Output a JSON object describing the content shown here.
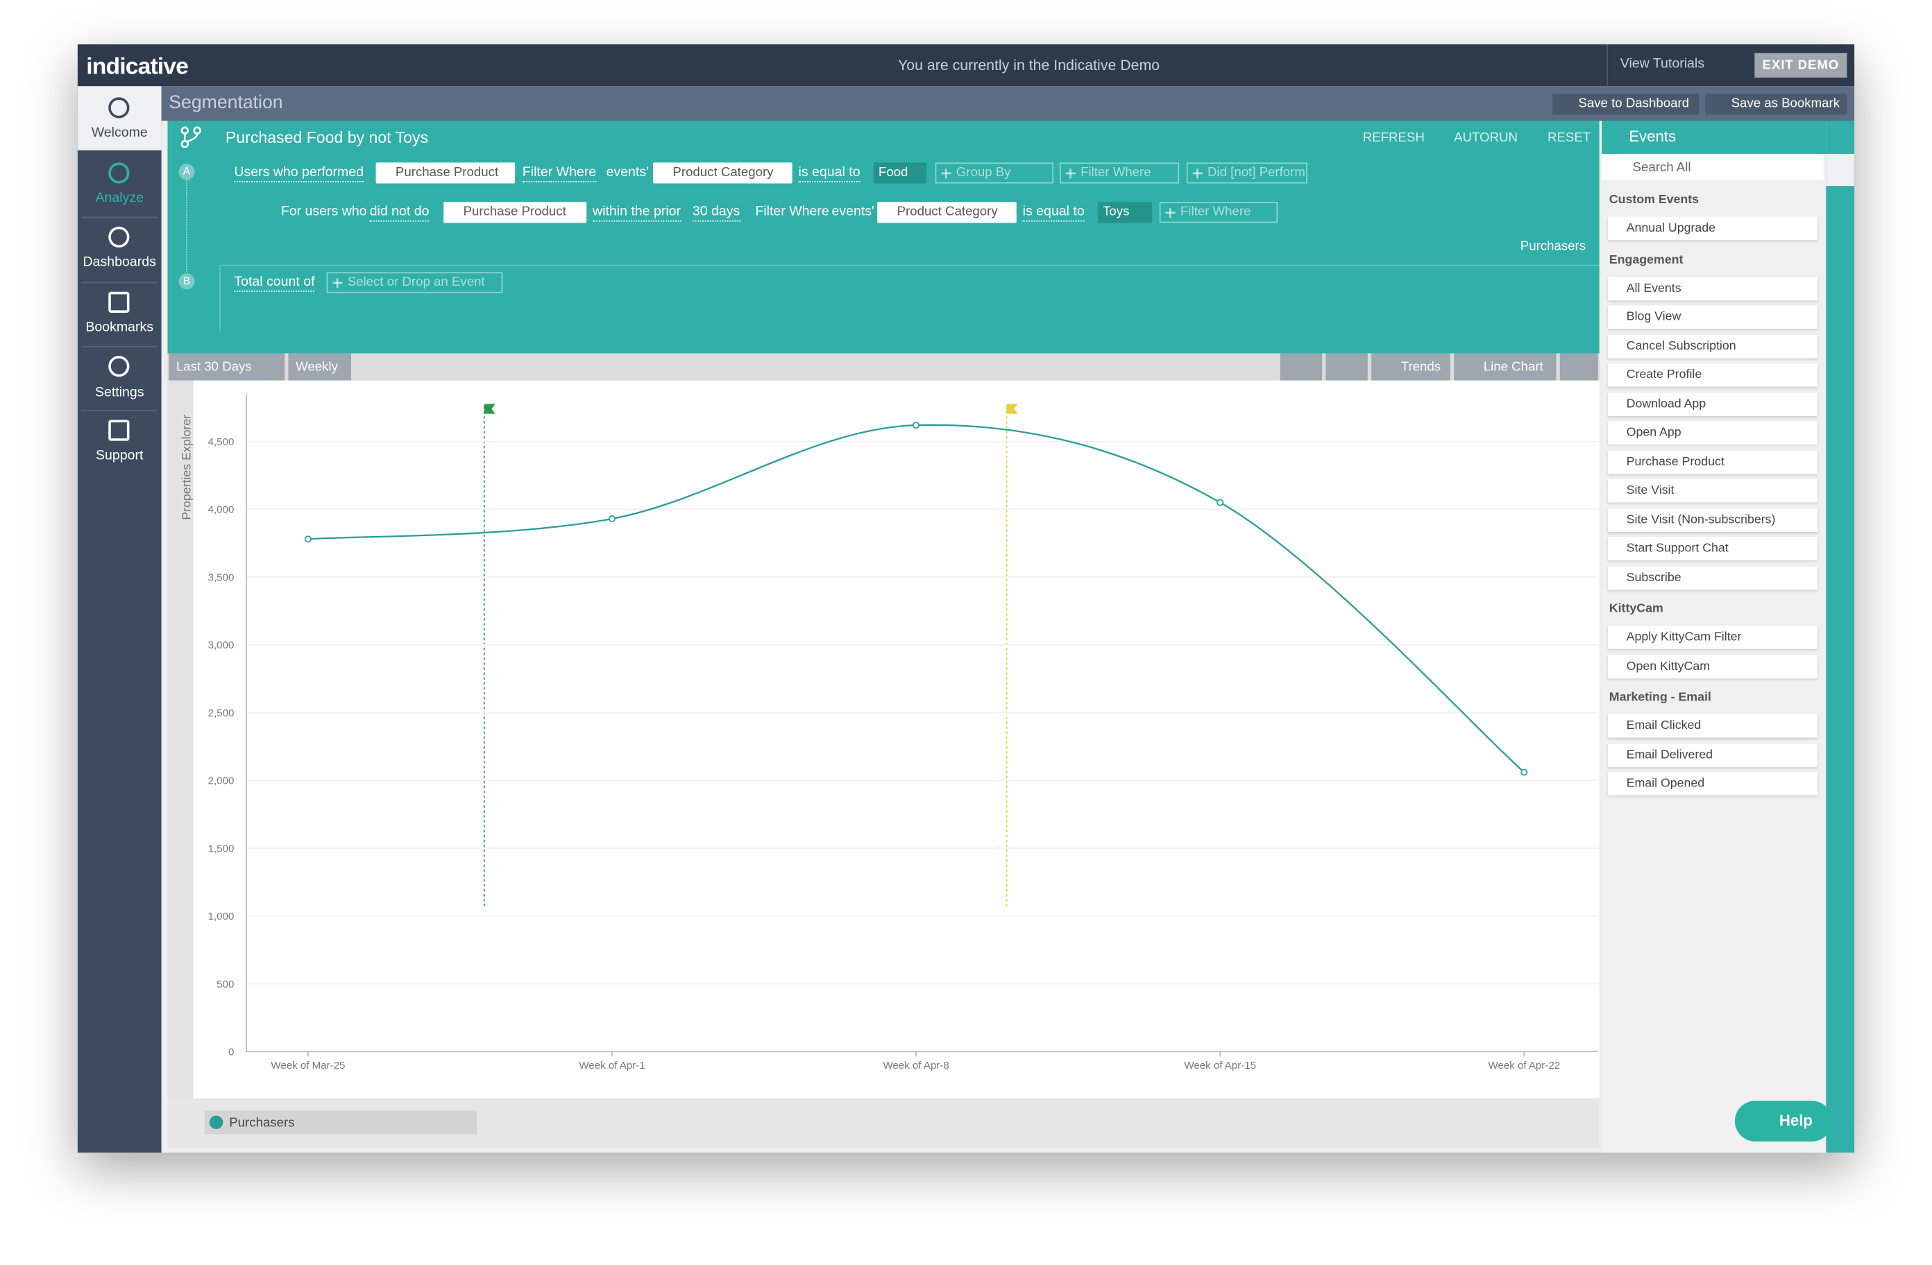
{
  "top_bar": {
    "logo": "indicative",
    "banner": "You are currently in the Indicative Demo",
    "view_tutorials": "View Tutorials",
    "exit_demo": "EXIT DEMO"
  },
  "nav": [
    "Welcome",
    "Analyze",
    "Dashboards",
    "Bookmarks",
    "Settings",
    "Support"
  ],
  "header": {
    "title": "Segmentation",
    "save_to_dashboard": "Save to Dashboard",
    "save_as_bookmark": "Save as Bookmark"
  },
  "query": {
    "title": "Purchased Food by not Toys",
    "refresh": "REFRESH",
    "autorun": "AUTORUN",
    "reset": "RESET",
    "a_label": "A",
    "b_label": "B",
    "row1": [
      "Users who performed",
      "Purchase Product",
      "Filter Where",
      "events'",
      "Product Category",
      "is equal to",
      "Food",
      "Group By",
      "Filter Where",
      "Did [not] Perform"
    ],
    "row2": [
      "For users who",
      "did not do",
      "Purchase Product",
      "within the prior",
      "30 days",
      "Filter Where",
      "events'",
      "Product Category",
      "is equal to",
      "Toys",
      "Filter Where"
    ],
    "metric_a": "Purchasers",
    "row3": [
      "Total count of",
      "Select or Drop an Event"
    ]
  },
  "chart_toolbar": {
    "range": "Last 30 Days",
    "interval": "Weekly",
    "trends": "Trends",
    "line_chart": "Line Chart"
  },
  "side_tab": "Properties Explorer",
  "chart_data": {
    "type": "line",
    "categories": [
      "Week of Mar-25",
      "Week of Apr-1",
      "Week of Apr-8",
      "Week of Apr-15",
      "Week of Apr-22"
    ],
    "series": [
      {
        "name": "Purchasers",
        "color": "#2a9d99",
        "values": [
          3780,
          3930,
          4620,
          4050,
          2060
        ]
      }
    ],
    "ylim": [
      0,
      4850
    ],
    "yticks": [
      0,
      500,
      {
        "value": 1000,
        "label": "1,000"
      },
      {
        "value": 1500,
        "label": "1,500"
      },
      {
        "value": 2000,
        "label": "2,000"
      },
      {
        "value": 2500,
        "label": "2,500"
      },
      {
        "value": 3000,
        "label": "3,000"
      },
      {
        "value": 3500,
        "label": "3,500"
      },
      {
        "value": 4000,
        "label": "4,000"
      },
      {
        "value": 4500,
        "label": "4,500"
      }
    ],
    "grid": true,
    "legend": "bottom"
  },
  "events": {
    "title": "Events",
    "search": "Search All",
    "groups": [
      {
        "name": "Custom Events",
        "items": [
          "Annual Upgrade"
        ]
      },
      {
        "name": "Engagement",
        "items": [
          "All Events",
          "Blog View",
          "Cancel Subscription",
          "Create Profile",
          "Download App",
          "Open App",
          "Purchase Product",
          "Site Visit",
          "Site Visit (Non-subscribers)",
          "Start Support Chat",
          "Subscribe"
        ]
      },
      {
        "name": "KittyCam",
        "items": [
          "Apply KittyCam Filter",
          "Open KittyCam"
        ]
      },
      {
        "name": "Marketing - Email",
        "items": [
          "Email Clicked",
          "Email Delivered",
          "Email Opened"
        ]
      }
    ]
  },
  "help": "Help"
}
